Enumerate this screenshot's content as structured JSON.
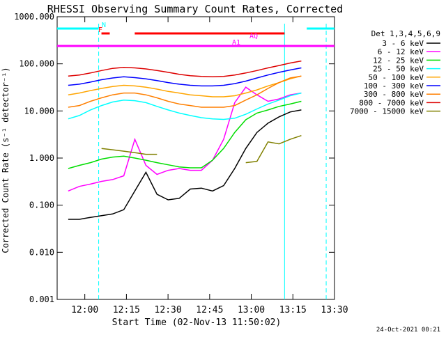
{
  "chart_data": {
    "type": "line",
    "title": "RHESSI Observing Summary Count Rates, Corrected",
    "xlabel": "Start Time (02-Nov-13 11:50:02)",
    "ylabel": "Corrected Count Rate (s⁻¹ detector⁻¹)",
    "yscale": "log",
    "ylim": [
      0.001,
      1000
    ],
    "xlim": [
      "11:50:02",
      "13:30"
    ],
    "x_ticks": [
      "12:00",
      "12:15",
      "12:30",
      "12:45",
      "13:00",
      "13:15",
      "13:30"
    ],
    "y_ticks": [
      "1000.000",
      "100.000",
      "10.000",
      "1.000",
      "0.100",
      "0.010",
      "0.001"
    ],
    "grid": false,
    "legend_position": "right",
    "legend_title": "Det 1,3,4,5,6,9",
    "footer_date": "24-Oct-2021 00:21",
    "x_minutes": [
      4,
      8,
      12,
      16,
      20,
      24,
      28,
      32,
      36,
      40,
      44,
      48,
      52,
      56,
      60,
      64,
      68,
      72,
      76,
      80,
      84,
      88
    ],
    "series": [
      {
        "name": "3 - 6 keV",
        "color": "#000000",
        "values": [
          0.05,
          0.05,
          0.055,
          0.06,
          0.065,
          0.08,
          0.2,
          0.5,
          0.17,
          0.13,
          0.14,
          0.22,
          0.23,
          0.2,
          0.26,
          0.6,
          1.6,
          3.5,
          5.5,
          7.5,
          9.5,
          10.5
        ]
      },
      {
        "name": "6 - 12 keV",
        "color": "#ff00ff",
        "values": [
          0.2,
          0.25,
          0.28,
          0.32,
          0.35,
          0.42,
          2.5,
          0.7,
          0.45,
          0.55,
          0.6,
          0.55,
          0.55,
          0.9,
          2.5,
          15,
          32,
          22,
          16,
          18,
          22,
          24
        ]
      },
      {
        "name": "12 - 25 keV",
        "color": "#00dd00",
        "values": [
          0.6,
          0.7,
          0.8,
          0.95,
          1.05,
          1.1,
          1.0,
          0.9,
          0.8,
          0.72,
          0.65,
          0.62,
          0.62,
          0.9,
          1.6,
          3.5,
          6.5,
          9,
          10.5,
          12.5,
          14,
          16
        ]
      },
      {
        "name": "25 - 50 keV",
        "color": "#00ffff",
        "values": [
          6.8,
          8,
          10.5,
          13,
          15.5,
          17,
          16.5,
          15,
          12.5,
          10.5,
          9,
          8,
          7.2,
          6.8,
          6.6,
          7,
          8.5,
          11,
          14,
          17,
          21,
          24
        ]
      },
      {
        "name": "50 - 100 keV",
        "color": "#ffa500",
        "values": [
          22,
          24,
          27,
          30,
          33,
          35,
          34,
          32,
          29,
          26,
          24,
          22,
          21,
          20,
          20,
          21,
          24,
          28,
          34,
          40,
          48,
          55
        ]
      },
      {
        "name": "100 - 300 keV",
        "color": "#0000ff",
        "values": [
          35,
          37,
          41,
          46,
          50,
          53,
          51,
          48,
          44,
          40,
          37,
          35,
          34,
          34,
          35,
          38,
          43,
          50,
          58,
          66,
          74,
          82
        ]
      },
      {
        "name": "300 - 800 keV",
        "color": "#ff7f00",
        "values": [
          12,
          13,
          16,
          19,
          22,
          24,
          24,
          22,
          19,
          16,
          14,
          13,
          12,
          12,
          12,
          13,
          17,
          22,
          30,
          40,
          50,
          55
        ]
      },
      {
        "name": "800 - 7000 keV",
        "color": "#dd0000",
        "values": [
          55,
          58,
          64,
          72,
          80,
          84,
          82,
          78,
          72,
          66,
          60,
          56,
          54,
          53,
          54,
          58,
          64,
          72,
          82,
          92,
          104,
          115
        ]
      },
      {
        "name": "7000 - 15000 keV",
        "color": "#808000",
        "values": [
          null,
          null,
          null,
          1.6,
          1.5,
          1.4,
          1.3,
          1.2,
          1.2,
          null,
          null,
          null,
          null,
          null,
          null,
          null,
          0.8,
          0.85,
          2.2,
          2.0,
          2.5,
          3.0
        ]
      }
    ],
    "status_bars": [
      {
        "label": "N",
        "color": "#00ffff",
        "segments": [
          [
            "11:50:02",
            "12:05"
          ],
          [
            "13:20",
            "13:30"
          ]
        ]
      },
      {
        "label": "F",
        "color": "#ff0000",
        "segments": [
          [
            "12:06",
            "12:09"
          ],
          [
            "12:18",
            "13:12"
          ]
        ]
      },
      {
        "label": "AQ",
        "color": "#ff00ff",
        "segments": []
      },
      {
        "label": "A1",
        "color": "#ff00ff",
        "segments": [
          [
            "11:50:02",
            "13:30"
          ]
        ]
      }
    ],
    "vertical_markers": [
      {
        "time": "12:05",
        "color": "#00ffff",
        "style": "dashed"
      },
      {
        "time": "13:12",
        "color": "#00ffff",
        "style": "solid"
      },
      {
        "time": "13:27",
        "color": "#00ffff",
        "style": "dashed"
      }
    ]
  }
}
